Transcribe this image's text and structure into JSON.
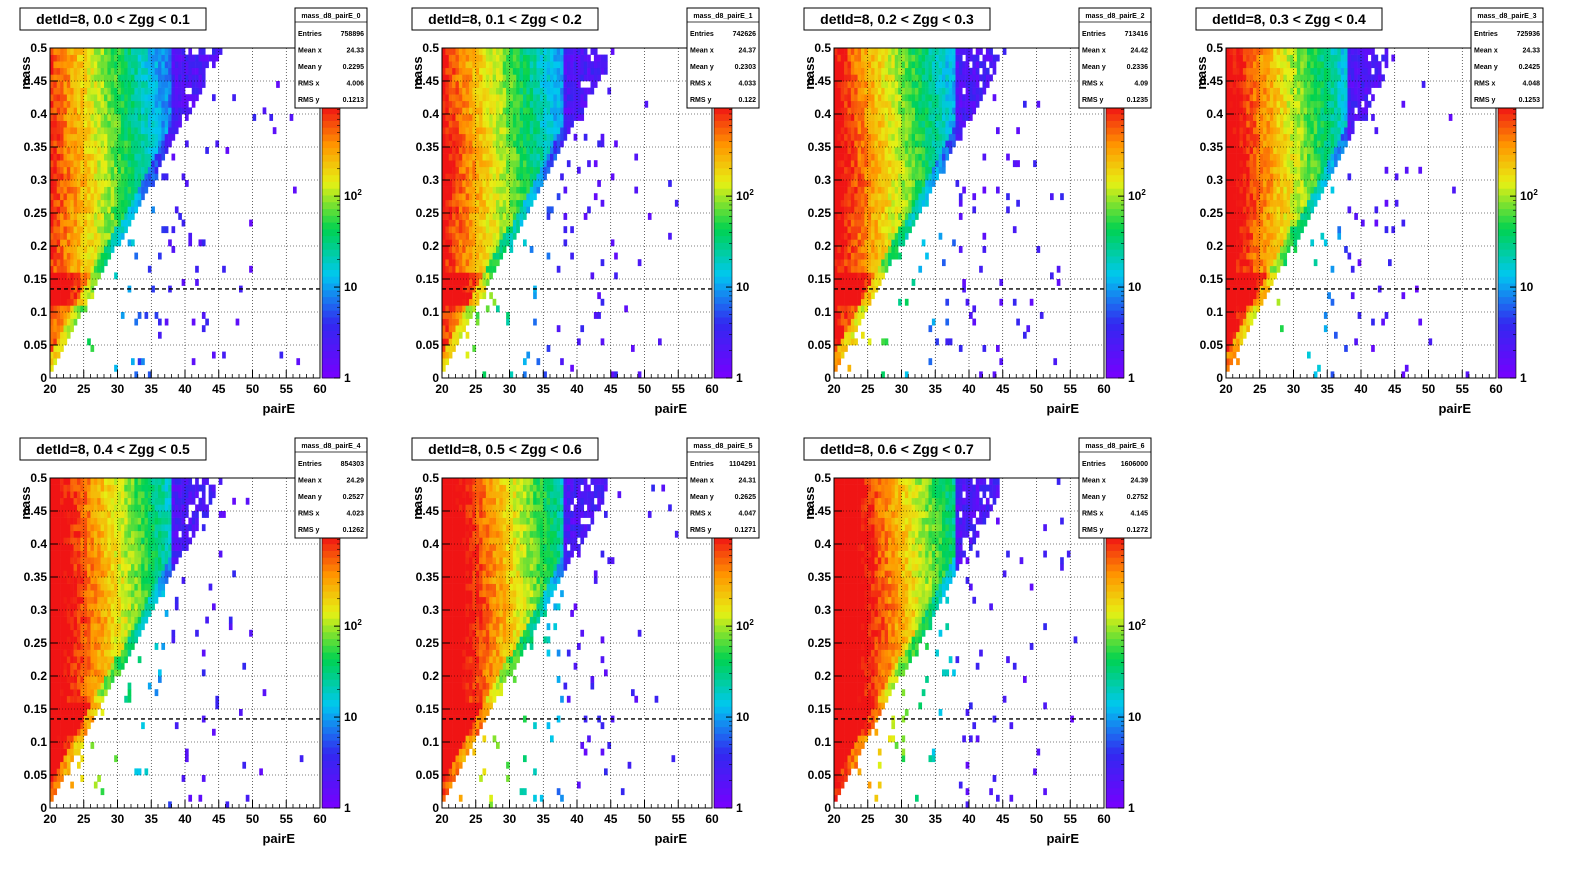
{
  "chart_data": [
    {
      "type": "heatmap",
      "title": "detId=8, 0.0 < Zgg < 0.1",
      "xlabel": "pairE",
      "ylabel": "mass",
      "xlim": [
        20,
        60
      ],
      "ylim": [
        0,
        0.5
      ],
      "xticks": [
        "20",
        "25",
        "30",
        "35",
        "40",
        "45",
        "50",
        "55",
        "60"
      ],
      "yticks": [
        "0",
        "0.05",
        "0.1",
        "0.15",
        "0.2",
        "0.25",
        "0.3",
        "0.35",
        "0.4",
        "0.45",
        "0.5"
      ],
      "z_scale": "log",
      "z_ticks": [
        "1",
        "10",
        "10^2"
      ],
      "reference_line_y": 0.135,
      "grid": true,
      "stats": {
        "name": "mass_d8_pairE_0",
        "rows": [
          [
            "Entries",
            "758896"
          ],
          [
            "Mean x",
            "24.33"
          ],
          [
            "Mean y",
            "0.2295"
          ],
          [
            "RMS x",
            "4.006"
          ],
          [
            "RMS y",
            "0.1213"
          ]
        ]
      }
    },
    {
      "type": "heatmap",
      "title": "detId=8, 0.1 < Zgg < 0.2",
      "xlabel": "pairE",
      "ylabel": "mass",
      "xlim": [
        20,
        60
      ],
      "ylim": [
        0,
        0.5
      ],
      "xticks": [
        "20",
        "25",
        "30",
        "35",
        "40",
        "45",
        "50",
        "55",
        "60"
      ],
      "yticks": [
        "0",
        "0.05",
        "0.1",
        "0.15",
        "0.2",
        "0.25",
        "0.3",
        "0.35",
        "0.4",
        "0.45",
        "0.5"
      ],
      "z_scale": "log",
      "z_ticks": [
        "1",
        "10",
        "10^2"
      ],
      "reference_line_y": 0.135,
      "grid": true,
      "stats": {
        "name": "mass_d8_pairE_1",
        "rows": [
          [
            "Entries",
            "742626"
          ],
          [
            "Mean x",
            "24.37"
          ],
          [
            "Mean y",
            "0.2303"
          ],
          [
            "RMS x",
            "4.033"
          ],
          [
            "RMS y",
            "0.122"
          ]
        ]
      }
    },
    {
      "type": "heatmap",
      "title": "detId=8, 0.2 < Zgg < 0.3",
      "xlabel": "pairE",
      "ylabel": "mass",
      "xlim": [
        20,
        60
      ],
      "ylim": [
        0,
        0.5
      ],
      "xticks": [
        "20",
        "25",
        "30",
        "35",
        "40",
        "45",
        "50",
        "55",
        "60"
      ],
      "yticks": [
        "0",
        "0.05",
        "0.1",
        "0.15",
        "0.2",
        "0.25",
        "0.3",
        "0.35",
        "0.4",
        "0.45",
        "0.5"
      ],
      "z_scale": "log",
      "z_ticks": [
        "1",
        "10",
        "10^2"
      ],
      "reference_line_y": 0.135,
      "grid": true,
      "stats": {
        "name": "mass_d8_pairE_2",
        "rows": [
          [
            "Entries",
            "713416"
          ],
          [
            "Mean x",
            "24.42"
          ],
          [
            "Mean y",
            "0.2336"
          ],
          [
            "RMS x",
            "4.09"
          ],
          [
            "RMS y",
            "0.1235"
          ]
        ]
      }
    },
    {
      "type": "heatmap",
      "title": "detId=8, 0.3 < Zgg < 0.4",
      "xlabel": "pairE",
      "ylabel": "mass",
      "xlim": [
        20,
        60
      ],
      "ylim": [
        0,
        0.5
      ],
      "xticks": [
        "20",
        "25",
        "30",
        "35",
        "40",
        "45",
        "50",
        "55",
        "60"
      ],
      "yticks": [
        "0",
        "0.05",
        "0.1",
        "0.15",
        "0.2",
        "0.25",
        "0.3",
        "0.35",
        "0.4",
        "0.45",
        "0.5"
      ],
      "z_scale": "log",
      "z_ticks": [
        "1",
        "10",
        "10^2"
      ],
      "reference_line_y": 0.135,
      "grid": true,
      "stats": {
        "name": "mass_d8_pairE_3",
        "rows": [
          [
            "Entries",
            "725936"
          ],
          [
            "Mean x",
            "24.33"
          ],
          [
            "Mean y",
            "0.2425"
          ],
          [
            "RMS x",
            "4.048"
          ],
          [
            "RMS y",
            "0.1253"
          ]
        ]
      }
    },
    {
      "type": "heatmap",
      "title": "detId=8, 0.4 < Zgg < 0.5",
      "xlabel": "pairE",
      "ylabel": "mass",
      "xlim": [
        20,
        60
      ],
      "ylim": [
        0,
        0.5
      ],
      "xticks": [
        "20",
        "25",
        "30",
        "35",
        "40",
        "45",
        "50",
        "55",
        "60"
      ],
      "yticks": [
        "0",
        "0.05",
        "0.1",
        "0.15",
        "0.2",
        "0.25",
        "0.3",
        "0.35",
        "0.4",
        "0.45",
        "0.5"
      ],
      "z_scale": "log",
      "z_ticks": [
        "1",
        "10",
        "10^2"
      ],
      "reference_line_y": 0.135,
      "grid": true,
      "stats": {
        "name": "mass_d8_pairE_4",
        "rows": [
          [
            "Entries",
            "854303"
          ],
          [
            "Mean x",
            "24.29"
          ],
          [
            "Mean y",
            "0.2527"
          ],
          [
            "RMS x",
            "4.023"
          ],
          [
            "RMS y",
            "0.1262"
          ]
        ]
      }
    },
    {
      "type": "heatmap",
      "title": "detId=8, 0.5 < Zgg < 0.6",
      "xlabel": "pairE",
      "ylabel": "mass",
      "xlim": [
        20,
        60
      ],
      "ylim": [
        0,
        0.5
      ],
      "xticks": [
        "20",
        "25",
        "30",
        "35",
        "40",
        "45",
        "50",
        "55",
        "60"
      ],
      "yticks": [
        "0",
        "0.05",
        "0.1",
        "0.15",
        "0.2",
        "0.25",
        "0.3",
        "0.35",
        "0.4",
        "0.45",
        "0.5"
      ],
      "z_scale": "log",
      "z_ticks": [
        "1",
        "10",
        "10^2"
      ],
      "reference_line_y": 0.135,
      "grid": true,
      "stats": {
        "name": "mass_d8_pairE_5",
        "rows": [
          [
            "Entries",
            "1104291"
          ],
          [
            "Mean x",
            "24.31"
          ],
          [
            "Mean y",
            "0.2625"
          ],
          [
            "RMS x",
            "4.047"
          ],
          [
            "RMS y",
            "0.1271"
          ]
        ]
      }
    },
    {
      "type": "heatmap",
      "title": "detId=8, 0.6 < Zgg < 0.7",
      "xlabel": "pairE",
      "ylabel": "mass",
      "xlim": [
        20,
        60
      ],
      "ylim": [
        0,
        0.5
      ],
      "xticks": [
        "20",
        "25",
        "30",
        "35",
        "40",
        "45",
        "50",
        "55",
        "60"
      ],
      "yticks": [
        "0",
        "0.05",
        "0.1",
        "0.15",
        "0.2",
        "0.25",
        "0.3",
        "0.35",
        "0.4",
        "0.45",
        "0.5"
      ],
      "z_scale": "log",
      "z_ticks": [
        "1",
        "10",
        "10^2"
      ],
      "reference_line_y": 0.135,
      "grid": true,
      "stats": {
        "name": "mass_d8_pairE_6",
        "rows": [
          [
            "Entries",
            "1606000"
          ],
          [
            "Mean x",
            "24.39"
          ],
          [
            "Mean y",
            "0.2752"
          ],
          [
            "RMS x",
            "4.145"
          ],
          [
            "RMS y",
            "0.1272"
          ]
        ]
      }
    }
  ]
}
